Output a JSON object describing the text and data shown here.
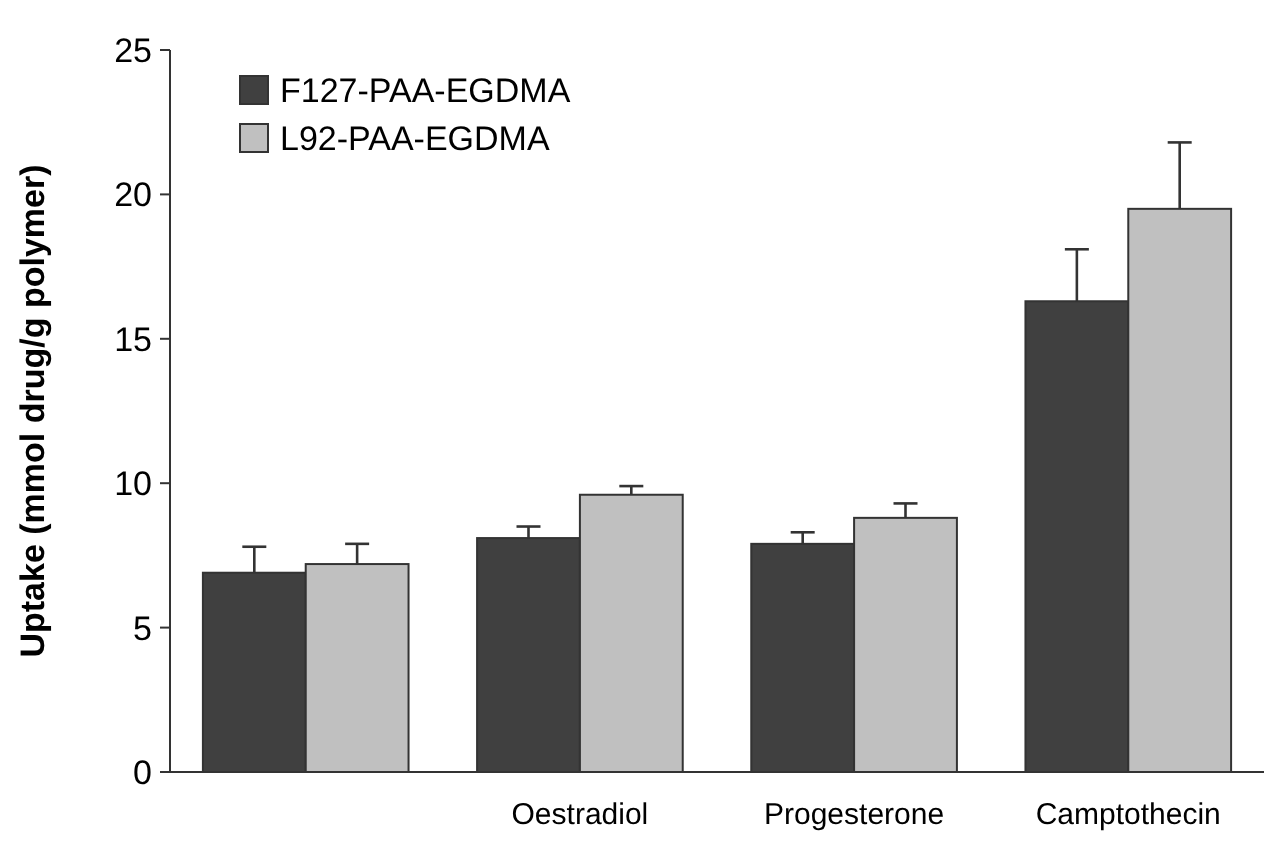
{
  "chart_data": {
    "type": "bar",
    "ylabel": "Uptake (mmol drug/g polymer)",
    "categories": [
      null,
      "Oestradiol",
      "Progesterone",
      "Camptothecin"
    ],
    "series": [
      {
        "name": "F127-PAA-EGDMA",
        "color": "#404040",
        "values": [
          6.9,
          8.1,
          7.9,
          16.3
        ],
        "errors": [
          [
            6.9,
            7.8
          ],
          [
            8.1,
            8.5
          ],
          [
            7.9,
            8.3
          ],
          [
            16.3,
            18.1
          ]
        ]
      },
      {
        "name": "L92-PAA-EGDMA",
        "color": "#c0c0c0",
        "values": [
          7.2,
          9.6,
          8.8,
          19.5
        ],
        "errors": [
          [
            7.2,
            7.9
          ],
          [
            9.6,
            9.9
          ],
          [
            8.8,
            9.3
          ],
          [
            19.5,
            21.8
          ]
        ]
      }
    ],
    "ylim": [
      0,
      25
    ],
    "yticks": [
      0,
      5,
      10,
      15,
      20,
      25
    ],
    "grid": false,
    "legend": "top left"
  }
}
